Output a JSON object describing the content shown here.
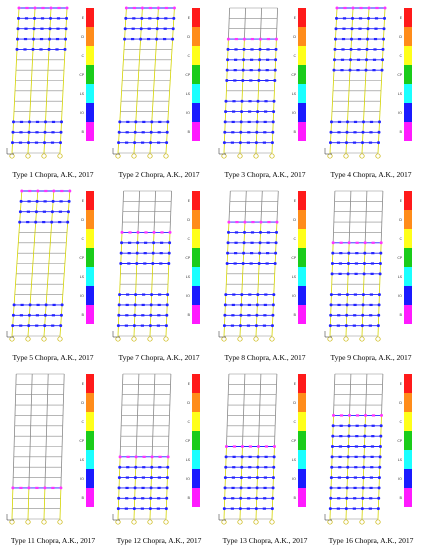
{
  "legend": {
    "levels": [
      "E",
      "D",
      "C",
      "CP",
      "LS",
      "IO",
      "B"
    ],
    "colors": [
      "#ff1a1a",
      "#ff8c1a",
      "#ffff1a",
      "#1acc1a",
      "#1affff",
      "#1a1aff",
      "#ff1aff"
    ]
  },
  "colors": {
    "frame": "#8a8a8a",
    "yielded_column": "#d4d400",
    "hinge_floor_beam": "#2323ff",
    "hinge_upper": "#ff33ff",
    "support": "#c8b400"
  },
  "panels": [
    {
      "caption": "Type 1 Chopra, A.K., 2017",
      "bottom_hinge_floors": 3,
      "upper_start": 10,
      "upper_end": 14,
      "drift": 0.1
    },
    {
      "caption": "Type 2 Chopra, A.K., 2017",
      "bottom_hinge_floors": 3,
      "upper_start": 11,
      "upper_end": 14,
      "drift": 0.12
    },
    {
      "caption": "Type 3 Chopra, A.K., 2017",
      "bottom_hinge_floors": 5,
      "upper_start": 7,
      "upper_end": 11,
      "drift": 0.08
    },
    {
      "caption": "Type 4 Chopra, A.K., 2017",
      "bottom_hinge_floors": 3,
      "upper_start": 8,
      "upper_end": 14,
      "drift": 0.1
    },
    {
      "caption": "Type 5 Chopra, A.K., 2017",
      "bottom_hinge_floors": 3,
      "upper_start": 11,
      "upper_end": 14,
      "drift": 0.14
    },
    {
      "caption": "Type 7 Chopra, A.K., 2017",
      "bottom_hinge_floors": 4,
      "upper_start": 7,
      "upper_end": 10,
      "drift": 0.08
    },
    {
      "caption": "Type 8 Chopra, A.K., 2017",
      "bottom_hinge_floors": 4,
      "upper_start": 7,
      "upper_end": 11,
      "drift": 0.09
    },
    {
      "caption": "Type 9 Chopra, A.K., 2017",
      "bottom_hinge_floors": 4,
      "upper_start": 6,
      "upper_end": 9,
      "drift": 0.07
    },
    {
      "caption": "Type 11 Chopra, A.K., 2017",
      "bottom_hinge_floors": 0,
      "upper_start": 3,
      "upper_end": 3,
      "drift": 0.06
    },
    {
      "caption": "Type 12 Chopra, A.K., 2017",
      "bottom_hinge_floors": 2,
      "upper_start": 3,
      "upper_end": 6,
      "drift": 0.07
    },
    {
      "caption": "Type 13 Chopra, A.K., 2017",
      "bottom_hinge_floors": 3,
      "upper_start": 4,
      "upper_end": 7,
      "drift": 0.07
    },
    {
      "caption": "Type 16 Chopra, A.K., 2017",
      "bottom_hinge_floors": 5,
      "upper_start": 6,
      "upper_end": 10,
      "drift": 0.07
    }
  ]
}
